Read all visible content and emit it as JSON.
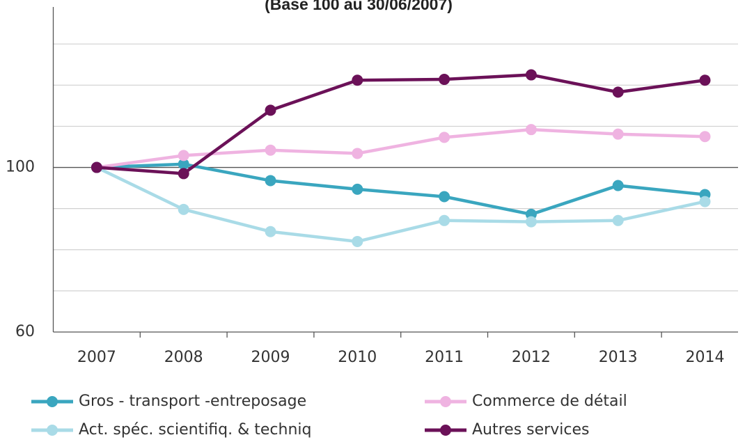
{
  "chart_data": {
    "type": "line",
    "subtitle": "(Base 100 au 30/06/2007)",
    "categories": [
      "2007",
      "2008",
      "2009",
      "2010",
      "2011",
      "2012",
      "2013",
      "2014"
    ],
    "series": [
      {
        "name": "Gros - transport -entreposage",
        "color": "#3aa6bf",
        "values": [
          100,
          100.8,
          96.8,
          94.7,
          92.9,
          88.6,
          95.6,
          93.4
        ]
      },
      {
        "name": "Commerce de détail",
        "color": "#efb3e1",
        "values": [
          100,
          102.9,
          104.2,
          103.4,
          107.3,
          109.2,
          108.1,
          107.5
        ]
      },
      {
        "name": "Act. spéc. scientifiq. & techniq",
        "color": "#a9dbe7",
        "values": [
          100,
          89.8,
          84.4,
          82.0,
          87.1,
          86.8,
          87.1,
          91.7
        ]
      },
      {
        "name": "Autres services",
        "color": "#6b1158",
        "values": [
          100,
          98.5,
          113.9,
          121.2,
          121.4,
          122.5,
          118.3,
          121.2
        ]
      }
    ],
    "ylim": [
      60,
      139
    ],
    "yticks": [
      60,
      100
    ],
    "grid_lines": [
      70,
      80,
      90,
      110,
      120,
      130
    ],
    "grid": true
  }
}
